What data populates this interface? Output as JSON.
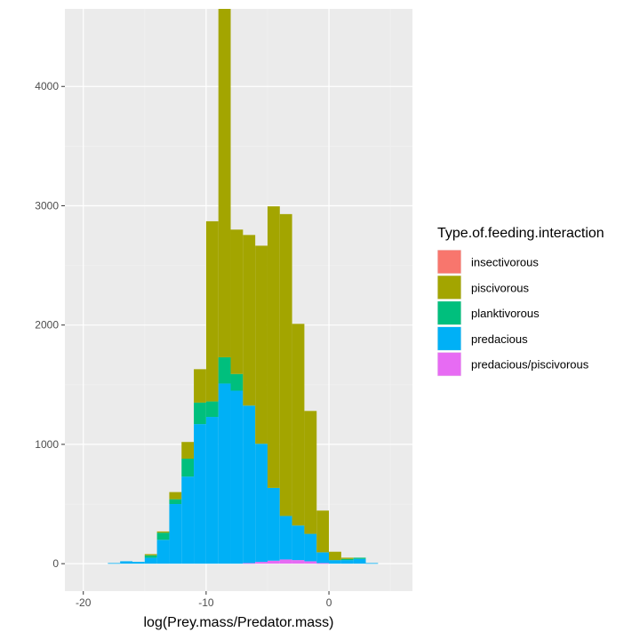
{
  "chart_data": {
    "type": "bar",
    "subtype": "stacked-histogram",
    "xlabel": "log(Prey.mass/Predator.mass)",
    "ylabel": "",
    "xlim": [
      -21.5,
      6.8
    ],
    "ylim": [
      -230,
      4650
    ],
    "x_ticks": [
      -20,
      -10,
      0
    ],
    "x_tick_labels": [
      "-20",
      "-10",
      "0"
    ],
    "y_ticks": [
      0,
      1000,
      2000,
      3000,
      4000
    ],
    "y_tick_labels": [
      "0",
      "1000",
      "2000",
      "3000",
      "4000"
    ],
    "grid": true,
    "bin_width": 1.0,
    "bin_centers": [
      -17.5,
      -16.5,
      -15.5,
      -14.5,
      -13.5,
      -12.5,
      -11.5,
      -10.5,
      -9.5,
      -8.5,
      -7.5,
      -6.5,
      -5.5,
      -4.5,
      -3.5,
      -2.5,
      -1.5,
      -0.5,
      0.5,
      1.5,
      2.5,
      3.5
    ],
    "legend": {
      "title": "Type.of.feeding.interaction",
      "position": "right",
      "entries": [
        "insectivorous",
        "piscivorous",
        "planktivorous",
        "predacious",
        "predacious/piscivorous"
      ]
    },
    "series": [
      {
        "name": "insectivorous",
        "color": "#F8766D",
        "values": [
          0,
          0,
          0,
          0,
          0,
          0,
          0,
          0,
          0,
          0,
          0,
          0,
          0,
          0,
          0,
          0,
          0,
          0,
          0,
          0,
          0,
          0
        ]
      },
      {
        "name": "predacious/piscivorous",
        "color": "#E76BF3",
        "values": [
          0,
          0,
          0,
          0,
          0,
          0,
          0,
          0,
          0,
          0,
          0,
          5,
          15,
          25,
          35,
          30,
          20,
          5,
          0,
          0,
          0,
          0
        ]
      },
      {
        "name": "predacious",
        "color": "#00B0F6",
        "values": [
          5,
          20,
          15,
          50,
          200,
          500,
          730,
          1170,
          1230,
          1510,
          1450,
          1320,
          990,
          610,
          365,
          290,
          230,
          90,
          30,
          30,
          40,
          5
        ]
      },
      {
        "name": "planktivorous",
        "color": "#00BF7D",
        "values": [
          0,
          0,
          0,
          20,
          60,
          40,
          150,
          180,
          130,
          220,
          140,
          0,
          0,
          0,
          0,
          0,
          0,
          0,
          0,
          10,
          10,
          0
        ]
      },
      {
        "name": "piscivorous",
        "color": "#A3A500",
        "values": [
          0,
          0,
          0,
          10,
          10,
          60,
          140,
          280,
          1510,
          2920,
          1210,
          1430,
          1660,
          2360,
          2530,
          1690,
          1030,
          350,
          70,
          10,
          0,
          0
        ]
      }
    ]
  },
  "colors": {
    "panel_background": "#EBEBEB",
    "grid_major": "#FFFFFF",
    "grid_minor": "#F2F2F2",
    "tick_color": "#333333"
  }
}
